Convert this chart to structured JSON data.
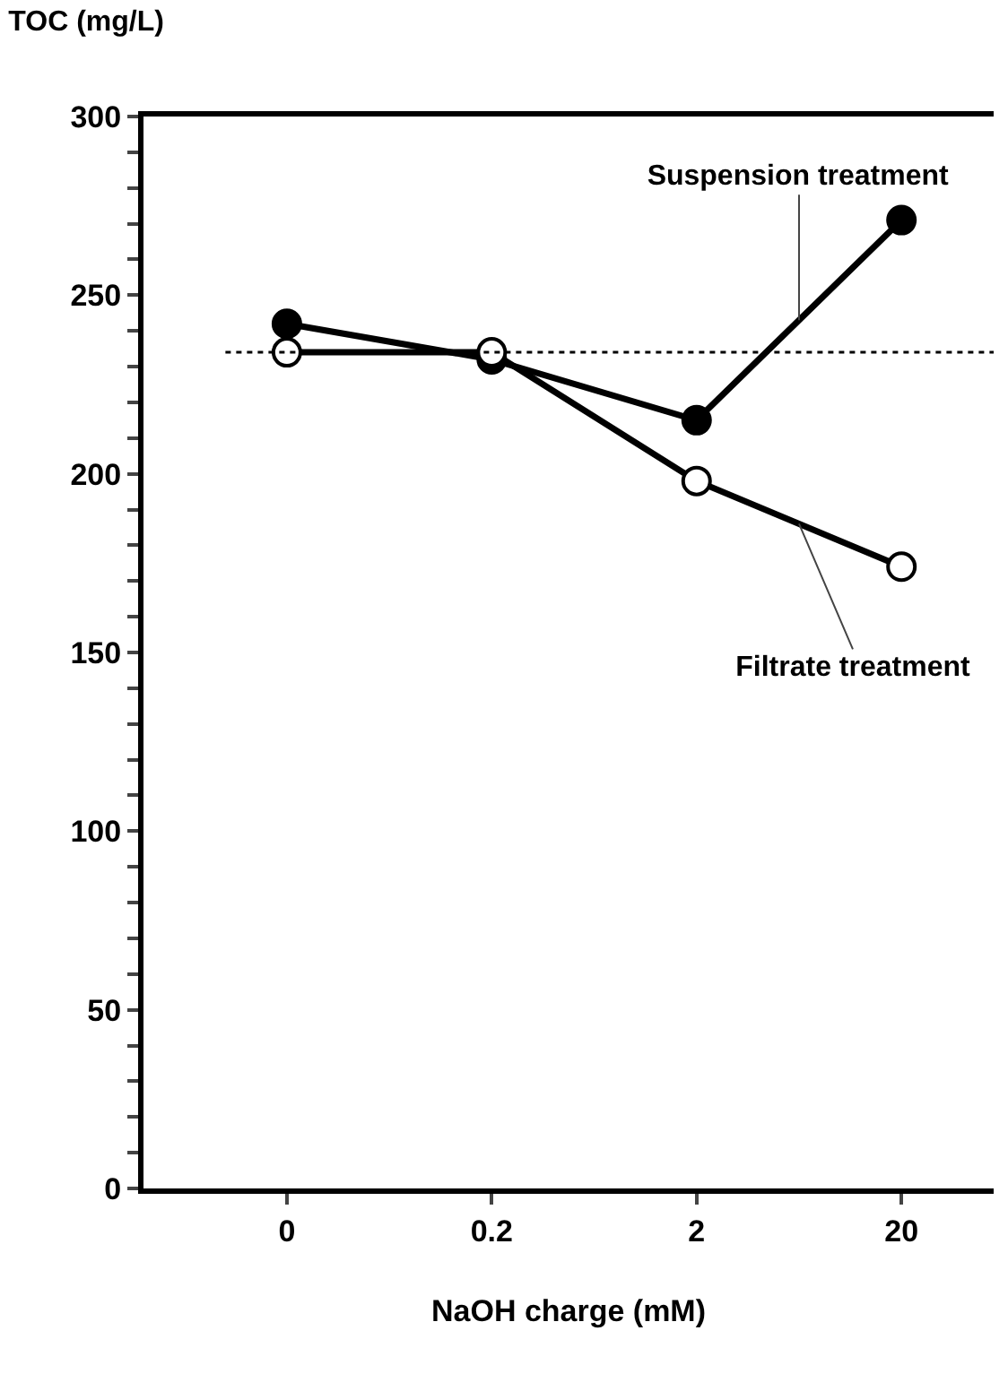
{
  "chart_data": {
    "type": "line",
    "ylabel": "TOC (mg/L)",
    "xlabel": "NaOH charge (mM)",
    "categories": [
      "0",
      "0.2",
      "2",
      "20"
    ],
    "series": [
      {
        "name": "Suspension treatment",
        "color": "#000000",
        "values": [
          242,
          232,
          215,
          271
        ]
      },
      {
        "name": "Filtrate treatment",
        "color": "#ffffff",
        "values": [
          234,
          234,
          198,
          174
        ]
      }
    ],
    "ylim": [
      0,
      300
    ],
    "yticks": [
      0,
      {
        "value": 10,
        "label": null
      },
      {
        "value": 20,
        "label": null
      },
      {
        "value": 30,
        "label": null
      },
      {
        "value": 40,
        "label": null
      },
      50,
      {
        "value": 60,
        "label": null
      },
      {
        "value": 70,
        "label": null
      },
      {
        "value": 80,
        "label": null
      },
      {
        "value": 90,
        "label": null
      },
      100,
      {
        "value": 110,
        "label": null
      },
      {
        "value": 120,
        "label": null
      },
      {
        "value": 130,
        "label": null
      },
      {
        "value": 140,
        "label": null
      },
      150,
      {
        "value": 160,
        "label": null
      },
      {
        "value": 170,
        "label": null
      },
      {
        "value": 180,
        "label": null
      },
      {
        "value": 190,
        "label": null
      },
      200,
      {
        "value": 210,
        "label": null
      },
      {
        "value": 220,
        "label": null
      },
      {
        "value": 230,
        "label": null
      },
      {
        "value": 240,
        "label": null
      },
      250,
      {
        "value": 260,
        "label": null
      },
      {
        "value": 270,
        "label": null
      },
      {
        "value": 280,
        "label": null
      },
      {
        "value": 290,
        "label": null
      },
      300
    ],
    "ref_lines": [
      {
        "axis": "y",
        "value": 234,
        "line_style": "dotted"
      }
    ],
    "marker": "circle",
    "line_style": "solid",
    "grid": false,
    "legend": false
  }
}
